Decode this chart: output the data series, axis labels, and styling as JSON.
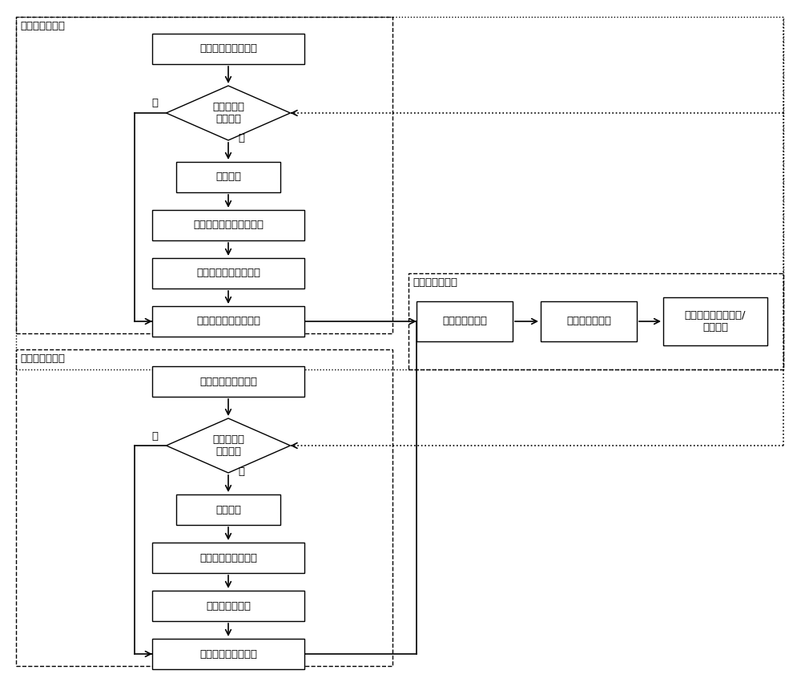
{
  "bg_color": "#ffffff",
  "box_color": "#ffffff",
  "box_edge": "#000000",
  "text_color": "#000000",
  "font_size": 9.5,
  "label_font_size": 9.5,
  "pump_label": "水泵站数据处理",
  "hydro_label": "水电站数据处理",
  "res_label": "上水库数据处理",
  "p_input_label": "输入水泵站数据参数",
  "p_diam_label": "判断水泵站\n是否运行",
  "p_c1_label": "计算扬程",
  "p_c2_label": "计算水泵输入功率和效率",
  "p_c3_label": "计算实际投入水泵数量",
  "p_c4_label": "计算运送至上水库水量",
  "h_input_label": "输入水电站数据参数",
  "h_diam_label": "判断水电站\n是否运行",
  "h_c1_label": "计算水头",
  "h_c2_label": "计算水轮机实际出力",
  "h_c3_label": "计算水轮机效率",
  "h_c4_label": "计算消耗上水库水量",
  "r1_label": "上水库原始水位",
  "r2_label": "上水库更新水位",
  "r3_label": "判断是否已达到最高/\n最低水位",
  "no_label": "否",
  "yes_label": "是"
}
